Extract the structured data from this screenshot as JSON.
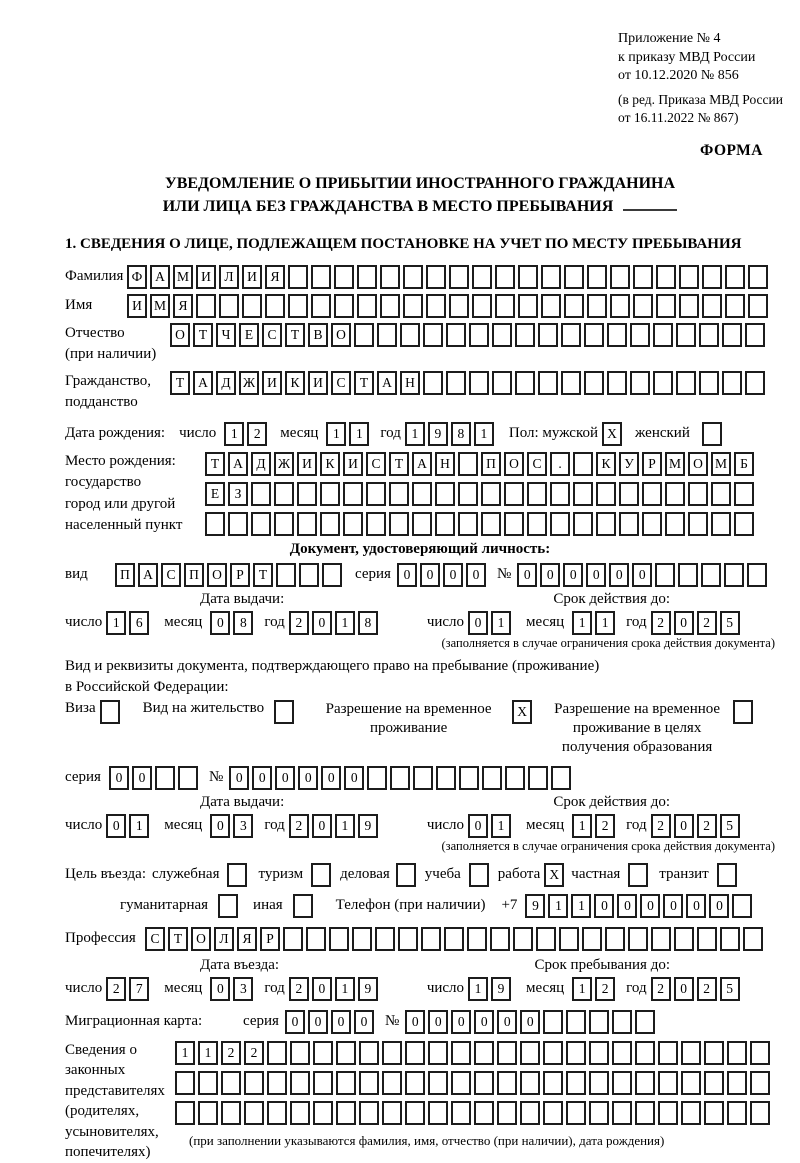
{
  "doc": {
    "appendix": [
      "Приложение № 4",
      "к приказу МВД России",
      "от 10.12.2020 № 856"
    ],
    "revision": [
      "(в ред. Приказа МВД России",
      "от 16.11.2022 № 867)"
    ],
    "form_marker": "ФОРМА",
    "title_line1": "УВЕДОМЛЕНИЕ О ПРИБЫТИИ ИНОСТРАННОГО ГРАЖДАНИНА",
    "title_line2": "ИЛИ ЛИЦА БЕЗ ГРАЖДАНСТВА В МЕСТО ПРЕБЫВАНИЯ",
    "section1_heading": "1. СВЕДЕНИЯ О ЛИЦЕ, ПОДЛЕЖАЩЕМ ПОСТАНОВКЕ НА УЧЕТ ПО МЕСТУ ПРЕБЫВАНИЯ"
  },
  "labels": {
    "surname": "Фамилия",
    "name": "Имя",
    "patronymic_1": "Отчество",
    "patronymic_2": "(при наличии)",
    "citizenship_1": "Гражданство,",
    "citizenship_2": "подданство",
    "birth_date": "Дата рождения:",
    "day": "число",
    "month": "месяц",
    "year": "год",
    "sex_male": "Пол: мужской",
    "sex_female": "женский",
    "birth_place": "Место рождения:",
    "birth_state": "государство",
    "birth_city_1": "город или другой",
    "birth_city_2": "населенный пункт",
    "identity_doc_heading": "Документ, удостоверяющий личность:",
    "vid": "вид",
    "seria": "серия",
    "num": "№",
    "issue_date": "Дата выдачи:",
    "valid_until": "Срок действия до:",
    "restriction_note": "(заполняется в случае ограничения срока действия документа)",
    "residence_doc_1": "Вид и реквизиты документа, подтверждающего право на пребывание (проживание)",
    "residence_doc_2": "в Российской Федерации:",
    "visa": "Виза",
    "residence_permit": "Вид на жительство",
    "temp_residence": "Разрешение на временное проживание",
    "temp_residence_edu": "Разрешение на временное проживание в целях получения образования",
    "purpose_intro": "Цель въезда:",
    "phone": "Телефон (при наличии)",
    "phone_prefix": "+7",
    "profession": "Профессия",
    "entry_date": "Дата въезда:",
    "stay_until": "Срок пребывания до:",
    "migration_card": "Миграционная карта:",
    "representatives": [
      "Сведения о",
      "законных",
      "представителях",
      "(родителях,",
      "усыновителях,",
      "попечителях)"
    ],
    "representatives_note": "(при заполнении указываются фамилия, имя, отчество (при наличии), дата рождения)"
  },
  "fields": {
    "surname": {
      "count": 28,
      "value": "ФАМИЛИЯ"
    },
    "name": {
      "count": 28,
      "value": "ИМЯ"
    },
    "patronymic": {
      "count": 26,
      "value": "ОТЧЕСТВО"
    },
    "citizenship": {
      "count": 26,
      "value": "ТАДЖИКИСТАН"
    },
    "birth": {
      "day": "12",
      "month": "11",
      "year": "1981"
    },
    "sex": {
      "male_box": "X",
      "female_box": ""
    },
    "birth_place": [
      {
        "count": 24,
        "value": "ТАДЖИКИСТАН ПОС. КУРМОМБ"
      },
      {
        "count": 24,
        "value": "ЕЗ"
      },
      {
        "count": 24,
        "value": ""
      }
    ],
    "doc": {
      "vid": {
        "count": 10,
        "value": "ПАСПОРТ"
      },
      "seria": "0000",
      "num": {
        "count": 11,
        "value": "000000"
      },
      "issue": {
        "day": "16",
        "month": "08",
        "year": "2018"
      },
      "valid": {
        "day": "01",
        "month": "11",
        "year": "2025"
      }
    },
    "residence": {
      "visa_box": "",
      "permit_box": "",
      "temp_box": "X",
      "temp_edu_box": "",
      "seria": {
        "count": 4,
        "value": "00"
      },
      "num": {
        "count": 15,
        "value": "000000"
      },
      "issue": {
        "day": "01",
        "month": "03",
        "year": "2019"
      },
      "valid": {
        "day": "01",
        "month": "12",
        "year": "2025"
      }
    },
    "purpose": {
      "items": [
        {
          "label": "служебная",
          "box": ""
        },
        {
          "label": "туризм",
          "box": ""
        },
        {
          "label": "деловая",
          "box": ""
        },
        {
          "label": "учеба",
          "box": ""
        },
        {
          "label": "работа",
          "box": "X"
        },
        {
          "label": "частная",
          "box": ""
        },
        {
          "label": "транзит",
          "box": ""
        }
      ],
      "row2": [
        {
          "label": "гуманитарная",
          "box": ""
        },
        {
          "label": "иная",
          "box": ""
        }
      ]
    },
    "phone": {
      "count": 10,
      "value": "911000000"
    },
    "profession": {
      "count": 27,
      "value": "СТОЛЯР"
    },
    "entry": {
      "day": "27",
      "month": "03",
      "year": "2019"
    },
    "stay": {
      "day": "19",
      "month": "12",
      "year": "2025"
    },
    "migcard": {
      "seria": "0000",
      "num": {
        "count": 11,
        "value": "000000"
      }
    },
    "representatives": [
      {
        "count": 26,
        "value": "1122"
      },
      {
        "count": 26,
        "value": ""
      },
      {
        "count": 26,
        "value": ""
      }
    ]
  }
}
